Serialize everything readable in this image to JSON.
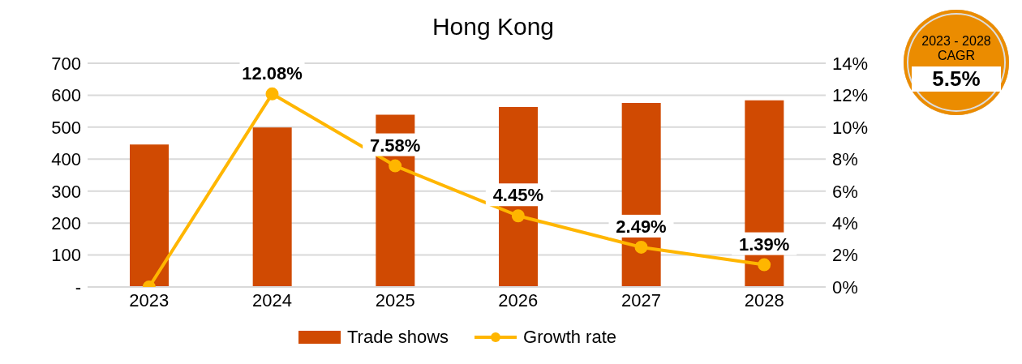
{
  "chart_data": {
    "type": "bar",
    "title": "Hong Kong",
    "categories": [
      "2023",
      "2024",
      "2025",
      "2026",
      "2027",
      "2028"
    ],
    "series": [
      {
        "name": "Trade shows",
        "color": "#d04a02",
        "values": [
          446,
          499,
          539,
          563,
          576,
          584
        ]
      },
      {
        "name": "Growth rate",
        "type": "line",
        "axis": "y2",
        "color": "#ffb600",
        "values": [
          0,
          12.08,
          7.58,
          4.45,
          2.49,
          1.39
        ],
        "value_labels": [
          null,
          "12.08%",
          "7.58%",
          "4.45%",
          "2.49%",
          "1.39%"
        ]
      }
    ],
    "ylim": [
      0,
      700
    ],
    "yticks": [
      {
        "value": 0,
        "label": "-"
      },
      100,
      200,
      300,
      400,
      500,
      600,
      700
    ],
    "y2lim": [
      0,
      14
    ],
    "y2ticks": [
      {
        "value": 0,
        "label": "0%"
      },
      {
        "value": 2,
        "label": "2%"
      },
      {
        "value": 4,
        "label": "4%"
      },
      {
        "value": 6,
        "label": "6%"
      },
      {
        "value": 8,
        "label": "8%"
      },
      {
        "value": 10,
        "label": "10%"
      },
      {
        "value": 12,
        "label": "12%"
      },
      {
        "value": 14,
        "label": "14%"
      }
    ],
    "grid": "y",
    "legend": "bottom",
    "marker": "circle",
    "line_style": "solid",
    "annotations": [
      "2023 - 2028 CAGR",
      "5.5%"
    ]
  }
}
